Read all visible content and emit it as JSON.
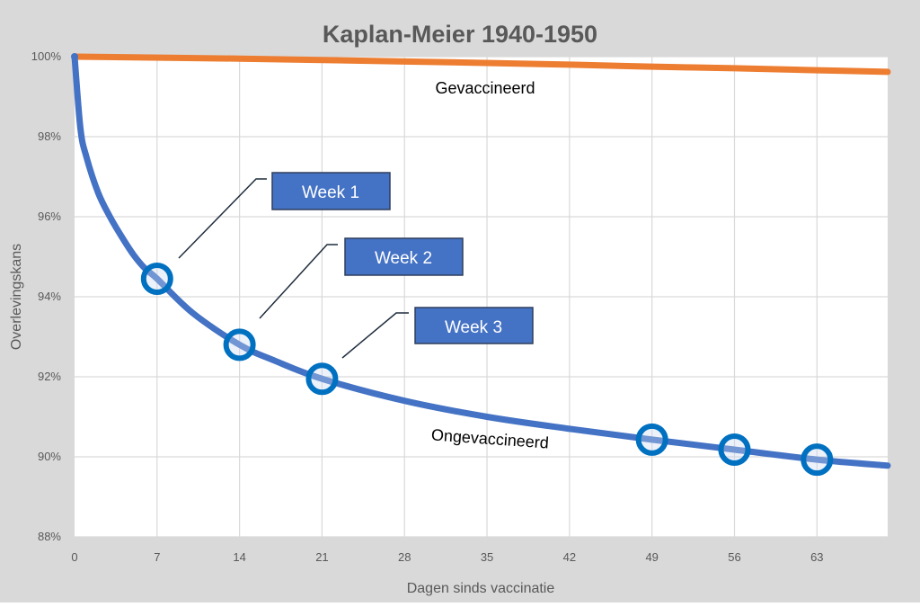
{
  "chart_data": {
    "type": "line",
    "title": "Kaplan-Meier 1940-1950",
    "xlabel": "Dagen sinds vaccinatie",
    "ylabel": "Overlevingskans",
    "xlim": [
      0,
      69
    ],
    "ylim": [
      88,
      100
    ],
    "x_ticks": [
      0,
      7,
      14,
      21,
      28,
      35,
      42,
      49,
      56,
      63
    ],
    "y_ticks": [
      "88%",
      "90%",
      "92%",
      "94%",
      "96%",
      "98%",
      "100%"
    ],
    "y_tick_values": [
      88,
      90,
      92,
      94,
      96,
      98,
      100
    ],
    "grid": true,
    "legend": "none",
    "series": [
      {
        "name": "Gevaccineerd",
        "color": "#ed7d31",
        "x": [
          0,
          14,
          28,
          42,
          49,
          56,
          63,
          69
        ],
        "y": [
          100,
          99.95,
          99.88,
          99.8,
          99.75,
          99.71,
          99.66,
          99.62
        ]
      },
      {
        "name": "Ongevaccineerd",
        "color": "#4472c4",
        "x": [
          0,
          0.5,
          1,
          2,
          3,
          4,
          5,
          6,
          7,
          10,
          14,
          17,
          21,
          28,
          35,
          42,
          49,
          56,
          63,
          69
        ],
        "y": [
          100,
          98.2,
          97.5,
          96.6,
          96.0,
          95.5,
          95.05,
          94.7,
          94.45,
          93.6,
          92.8,
          92.4,
          91.95,
          91.4,
          91.0,
          90.7,
          90.43,
          90.18,
          89.93,
          89.78
        ]
      }
    ],
    "highlighted_points": {
      "color": "#0070c0",
      "x": [
        7,
        14,
        21,
        49,
        56,
        63
      ],
      "y": [
        94.45,
        92.8,
        91.95,
        90.43,
        90.18,
        89.93
      ]
    },
    "annotations": [
      {
        "text": "Week 1",
        "x": 7,
        "y": 94.45
      },
      {
        "text": "Week 2",
        "x": 14,
        "y": 92.8
      },
      {
        "text": "Week 3",
        "x": 21,
        "y": 91.95
      }
    ],
    "annotation_color": "#4472c4",
    "background_color": "#d9d9d9",
    "plot_background": "#ffffff"
  }
}
